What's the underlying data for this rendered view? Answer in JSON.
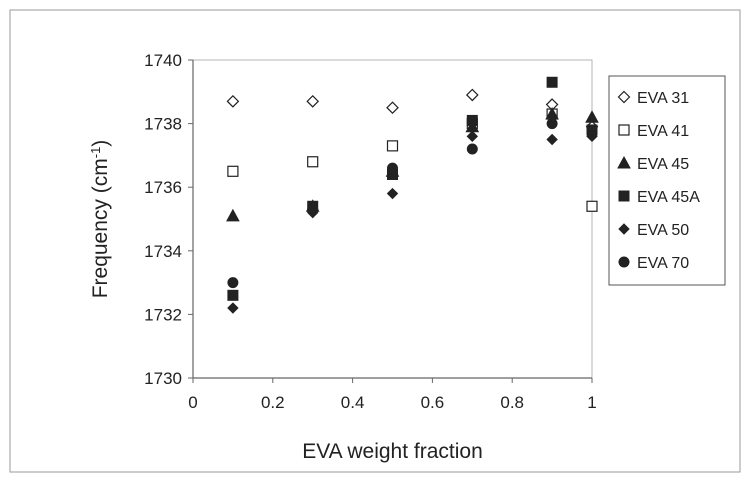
{
  "chart_data": {
    "type": "scatter",
    "xlabel": "EVA  weight fraction",
    "ylabel": {
      "base": "Frequency (cm",
      "sup": "-1",
      "tail": ")"
    },
    "xlim": [
      0,
      1
    ],
    "ylim": [
      1730,
      1740
    ],
    "x_ticks": [
      "0",
      "0.2",
      "0.4",
      "0.6",
      "0.8",
      "1"
    ],
    "y_ticks": [
      "1730",
      "1732",
      "1734",
      "1736",
      "1738",
      "1740"
    ],
    "grid": false,
    "legend_position": "right",
    "series": [
      {
        "name": "EVA  31",
        "marker": "diamond-open",
        "points": [
          [
            0.1,
            1738.7
          ],
          [
            0.3,
            1738.7
          ],
          [
            0.5,
            1738.5
          ],
          [
            0.7,
            1738.9
          ],
          [
            0.9,
            1738.6
          ],
          [
            1.0,
            1737.9
          ]
        ]
      },
      {
        "name": "EVA  41",
        "marker": "square-open",
        "points": [
          [
            0.1,
            1736.5
          ],
          [
            0.3,
            1736.8
          ],
          [
            0.5,
            1737.3
          ],
          [
            0.7,
            1738.0
          ],
          [
            0.9,
            1738.3
          ],
          [
            1.0,
            1735.4
          ]
        ]
      },
      {
        "name": "EVA  45",
        "marker": "triangle",
        "points": [
          [
            0.1,
            1735.1
          ],
          [
            0.3,
            1735.4
          ],
          [
            0.5,
            1736.5
          ],
          [
            0.7,
            1737.9
          ],
          [
            0.9,
            1738.3
          ],
          [
            1.0,
            1738.2
          ]
        ]
      },
      {
        "name": "EVA  45A",
        "marker": "square",
        "points": [
          [
            0.1,
            1732.6
          ],
          [
            0.3,
            1735.4
          ],
          [
            0.5,
            1736.4
          ],
          [
            0.7,
            1738.1
          ],
          [
            0.9,
            1739.3
          ],
          [
            1.0,
            1737.8
          ]
        ]
      },
      {
        "name": "EVA  50",
        "marker": "diamond",
        "points": [
          [
            0.1,
            1732.2
          ],
          [
            0.3,
            1735.2
          ],
          [
            0.5,
            1735.8
          ],
          [
            0.7,
            1737.6
          ],
          [
            0.9,
            1737.5
          ],
          [
            1.0,
            1737.6
          ]
        ]
      },
      {
        "name": "EVA  70",
        "marker": "circle",
        "points": [
          [
            0.1,
            1733.0
          ],
          [
            0.3,
            1735.3
          ],
          [
            0.5,
            1736.6
          ],
          [
            0.7,
            1737.2
          ],
          [
            0.9,
            1738.0
          ],
          [
            1.0,
            1737.7
          ]
        ]
      }
    ]
  }
}
